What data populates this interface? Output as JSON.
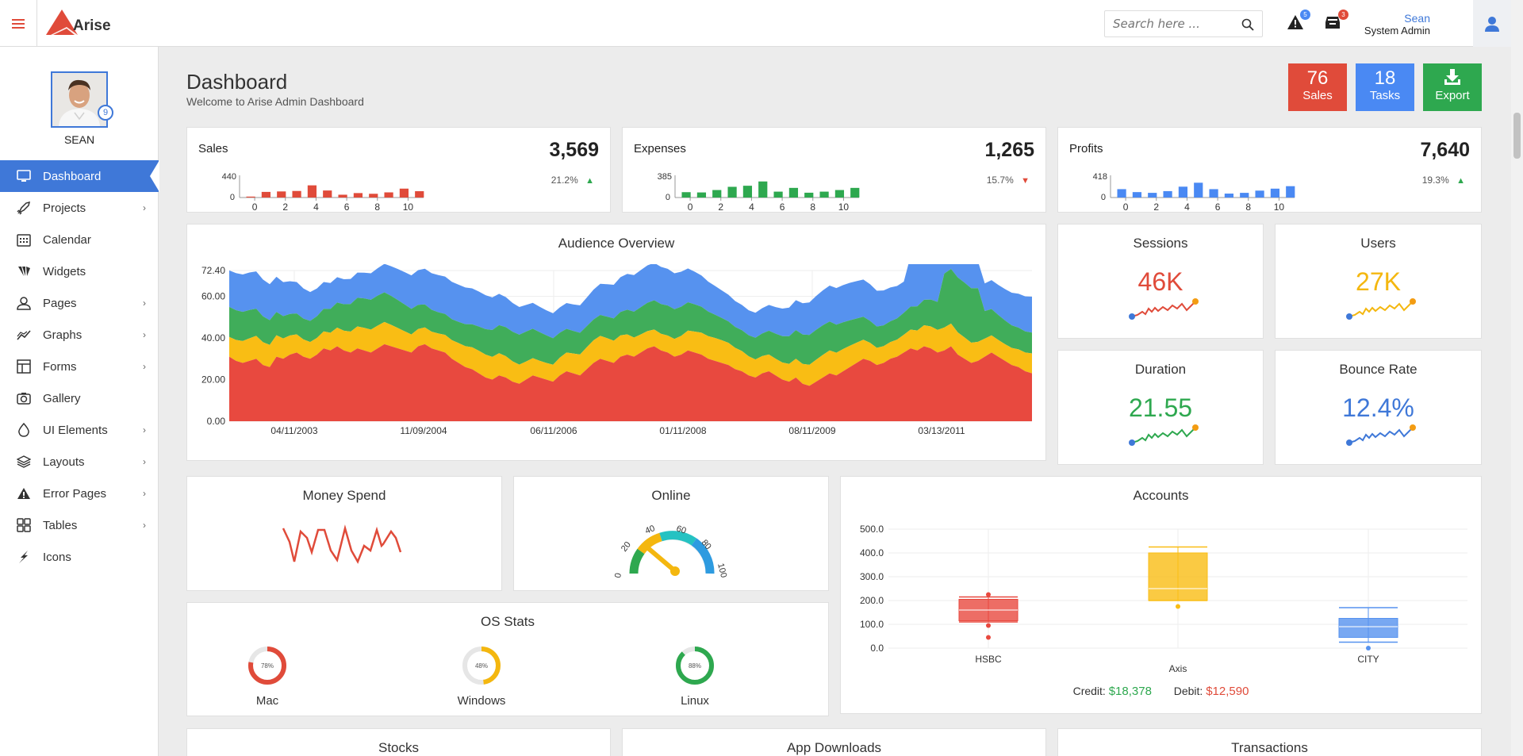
{
  "topbar": {
    "logo_text": "Arise",
    "search_placeholder": "Search here ...",
    "alert_count": "5",
    "cart_count": "3",
    "user_name": "Sean",
    "user_role": "System Admin"
  },
  "sidebar": {
    "profile_name": "SEAN",
    "profile_badge": "9",
    "items": [
      {
        "label": "Dashboard",
        "icon": "monitor-icon",
        "active": true,
        "has_children": false
      },
      {
        "label": "Projects",
        "icon": "rocket-icon",
        "has_children": true
      },
      {
        "label": "Calendar",
        "icon": "calendar-icon",
        "has_children": false
      },
      {
        "label": "Widgets",
        "icon": "widgets-icon",
        "has_children": false
      },
      {
        "label": "Pages",
        "icon": "user-icon",
        "has_children": true
      },
      {
        "label": "Graphs",
        "icon": "line-chart-icon",
        "has_children": true
      },
      {
        "label": "Forms",
        "icon": "layout-icon",
        "has_children": true
      },
      {
        "label": "Gallery",
        "icon": "camera-icon",
        "has_children": false
      },
      {
        "label": "UI Elements",
        "icon": "drop-icon",
        "has_children": true
      },
      {
        "label": "Layouts",
        "icon": "layers-icon",
        "has_children": true
      },
      {
        "label": "Error Pages",
        "icon": "warning-icon",
        "has_children": true
      },
      {
        "label": "Tables",
        "icon": "grid-icon",
        "has_children": true
      },
      {
        "label": "Icons",
        "icon": "bolt-icon",
        "has_children": false
      }
    ]
  },
  "header": {
    "title": "Dashboard",
    "subtitle": "Welcome to Arise Admin Dashboard",
    "buttons": [
      {
        "number": "76",
        "label": "Sales",
        "color": "#e04b3a"
      },
      {
        "number": "18",
        "label": "Tasks",
        "color": "#4a89f3"
      },
      {
        "number": "",
        "label": "Export",
        "color": "#2ea84f"
      }
    ]
  },
  "stats": [
    {
      "title": "Sales",
      "value": "3,569",
      "change": "21.2%",
      "trend": "up",
      "trend_color": "#2ea84f",
      "bar_color": "#e04b3a",
      "ymax": "440",
      "ymin": "0",
      "xticks": [
        "0",
        "2",
        "4",
        "6",
        "8",
        "10"
      ],
      "bars": [
        20,
        120,
        130,
        140,
        260,
        150,
        60,
        95,
        80,
        110,
        190,
        135
      ]
    },
    {
      "title": "Expenses",
      "value": "1,265",
      "change": "15.7%",
      "trend": "down",
      "trend_color": "#e04b3a",
      "bar_color": "#2ea84f",
      "ymax": "385",
      "ymin": "0",
      "xticks": [
        "0",
        "2",
        "4",
        "6",
        "8",
        "10"
      ],
      "bars": [
        100,
        95,
        140,
        200,
        220,
        300,
        110,
        180,
        90,
        110,
        140,
        180
      ]
    },
    {
      "title": "Profits",
      "value": "7,640",
      "change": "19.3%",
      "trend": "up",
      "trend_color": "#2ea84f",
      "bar_color": "#4a89f3",
      "ymax": "418",
      "ymin": "0",
      "xticks": [
        "0",
        "2",
        "4",
        "6",
        "8",
        "10"
      ],
      "bars": [
        170,
        110,
        95,
        130,
        220,
        300,
        170,
        80,
        95,
        140,
        180,
        230
      ]
    }
  ],
  "audience": {
    "title": "Audience Overview",
    "yticks": [
      "72.40",
      "60.00",
      "40.00",
      "20.00",
      "0.00"
    ],
    "xticks": [
      "04/11/2003",
      "11/09/2004",
      "06/11/2006",
      "01/11/2008",
      "08/11/2009",
      "03/13/2011"
    ],
    "colors": [
      "#e8493f",
      "#f9bd14",
      "#40ad5a",
      "#5692ef"
    ]
  },
  "kpis": [
    {
      "title": "Sessions",
      "value": "46K",
      "color": "#e04b3a"
    },
    {
      "title": "Users",
      "value": "27K",
      "color": "#f4b70f"
    },
    {
      "title": "Duration",
      "value": "21.55",
      "color": "#2ea84f"
    },
    {
      "title": "Bounce Rate",
      "value": "12.4%",
      "color": "#3f78d8"
    }
  ],
  "money_spend": {
    "title": "Money Spend"
  },
  "online": {
    "title": "Online",
    "ticks": [
      "0",
      "20",
      "40",
      "60",
      "80",
      "100"
    ],
    "value": 20
  },
  "os_stats": {
    "title": "OS Stats",
    "items": [
      {
        "label": "Mac",
        "percent": "78%",
        "value": 78,
        "color": "#e04b3a"
      },
      {
        "label": "Windows",
        "percent": "48%",
        "value": 48,
        "color": "#f4b70f"
      },
      {
        "label": "Linux",
        "percent": "88%",
        "value": 88,
        "color": "#2ea84f"
      }
    ]
  },
  "accounts": {
    "title": "Accounts",
    "axis_label": "Axis",
    "yticks": [
      "500.0",
      "400.0",
      "300.0",
      "200.0",
      "100.0",
      "0.0"
    ],
    "categories": [
      "HSBC",
      "CITY"
    ],
    "middle_category": "Axis",
    "credit_label": "Credit:",
    "credit_value": "$18,378",
    "debit_label": "Debit:",
    "debit_value": "$12,590"
  },
  "bottom_cards": [
    "Stocks",
    "App Downloads",
    "Transactions"
  ]
}
